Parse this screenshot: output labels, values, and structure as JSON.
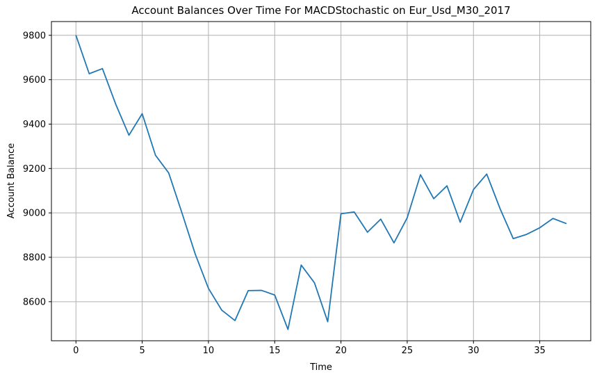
{
  "chart_data": {
    "type": "line",
    "title": "Account Balances Over Time For MACDStochastic on Eur_Usd_M30_2017",
    "xlabel": "Time",
    "ylabel": "Account Balance",
    "x": [
      0,
      1,
      2,
      3,
      4,
      5,
      6,
      7,
      8,
      9,
      10,
      11,
      12,
      13,
      14,
      15,
      16,
      17,
      18,
      19,
      20,
      21,
      22,
      23,
      24,
      25,
      26,
      27,
      28,
      29,
      30,
      31,
      32,
      33,
      34,
      35,
      36,
      37
    ],
    "series": [
      {
        "values": [
          9800,
          9627,
          9650,
          9490,
          9350,
          9447,
          9260,
          9180,
          9000,
          8815,
          8660,
          8562,
          8515,
          8650,
          8651,
          8630,
          8475,
          8765,
          8685,
          8510,
          8996,
          9004,
          8913,
          8972,
          8865,
          8978,
          9172,
          9064,
          9122,
          8958,
          9105,
          9175,
          9020,
          8884,
          8903,
          8933,
          8975,
          8952
        ],
        "color": "#1f77b4"
      }
    ],
    "xticks": [
      0,
      5,
      10,
      15,
      20,
      25,
      30,
      35
    ],
    "yticks": [
      8600,
      8800,
      9000,
      9200,
      9400,
      9600,
      9800
    ],
    "xlim": [
      -1.85,
      38.85
    ],
    "ylim": [
      8424,
      9862
    ],
    "grid": true,
    "legend": "none"
  }
}
